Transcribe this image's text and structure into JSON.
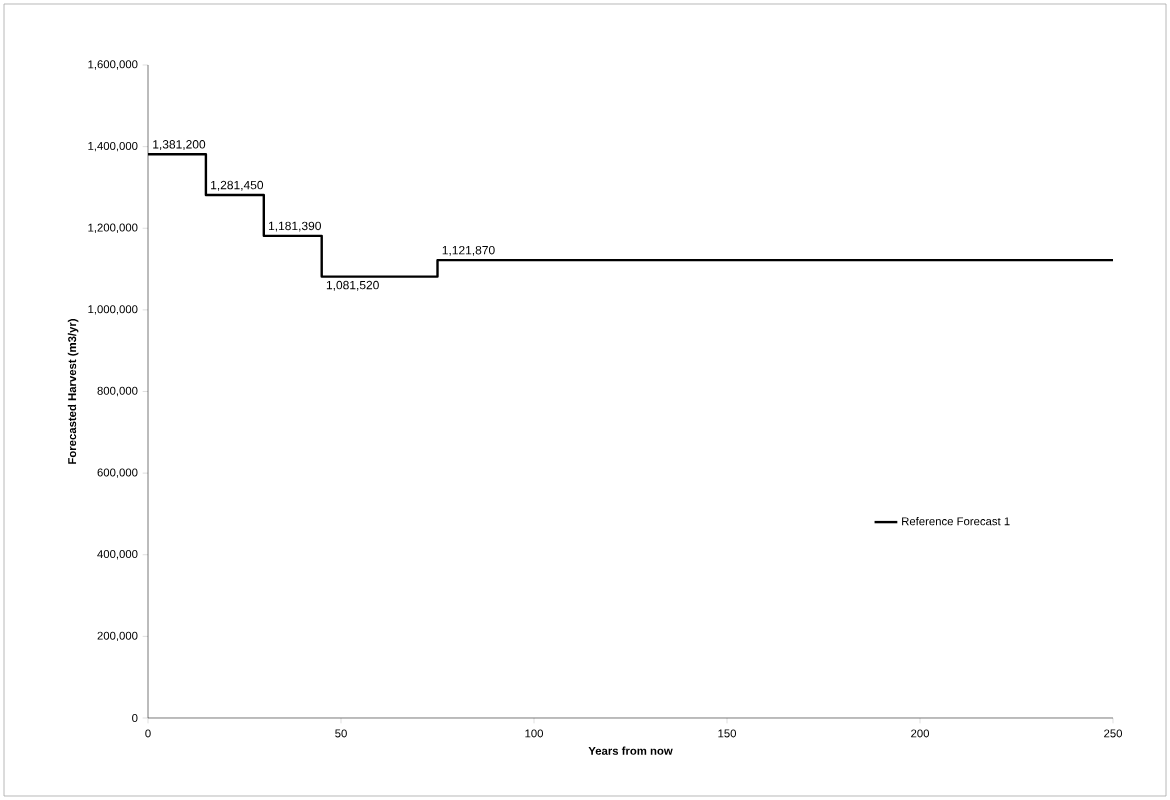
{
  "chart_data": {
    "type": "step",
    "xlabel": "Years from now",
    "ylabel": "Forecasted Harvest (m3/yr)",
    "xlim": [
      0,
      250
    ],
    "xticks": [
      0,
      50,
      100,
      150,
      200,
      250
    ],
    "ylim": [
      0,
      1600000
    ],
    "yticks": [
      {
        "value": 0,
        "label": "0"
      },
      {
        "value": 200000,
        "label": "200,000"
      },
      {
        "value": 400000,
        "label": "400,000"
      },
      {
        "value": 600000,
        "label": "600,000"
      },
      {
        "value": 800000,
        "label": "800,000"
      },
      {
        "value": 1000000,
        "label": "1,000,000"
      },
      {
        "value": 1200000,
        "label": "1,200,000"
      },
      {
        "value": 1400000,
        "label": "1,400,000"
      },
      {
        "value": 1600000,
        "label": "1,600,000"
      }
    ],
    "series": [
      {
        "name": "Reference Forecast 1",
        "color": "#000000",
        "x": [
          0,
          15,
          30,
          45,
          75,
          250
        ],
        "values": [
          1381200,
          1281450,
          1181390,
          1081520,
          1121870,
          1121870
        ],
        "value_labels": [
          "1,381,200",
          "1,281,450",
          "1,181,390",
          "1,081,520",
          "1,121,870",
          null
        ]
      }
    ],
    "legend": "right",
    "grid": false,
    "marker": "none",
    "line_style": "solid"
  }
}
